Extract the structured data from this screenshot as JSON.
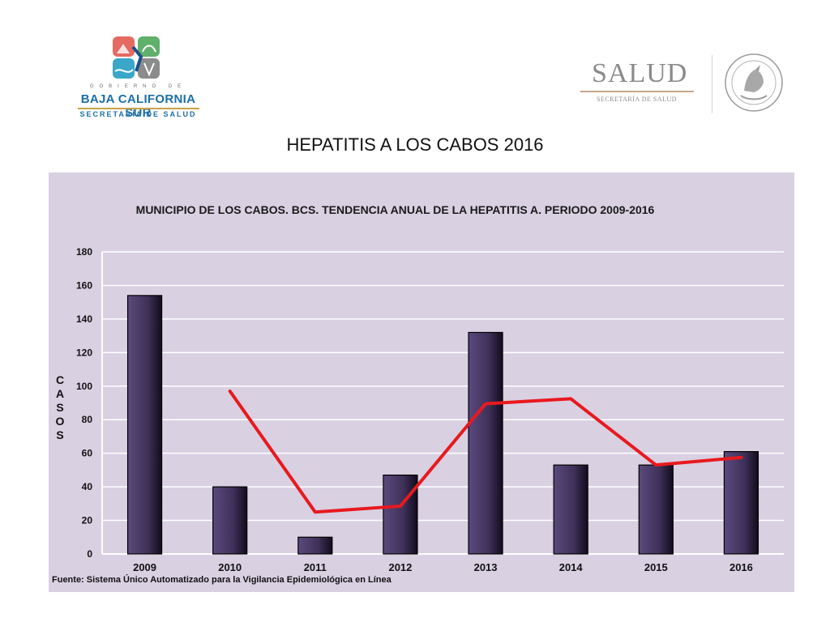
{
  "logos": {
    "bcs": {
      "gobierno": "GOBIERNO DE",
      "name": "BAJA CALIFORNIA SUR",
      "sub": "SECRETARÍA DE SALUD"
    },
    "salud": {
      "word": "SALUD",
      "sub": "SECRETARÍA DE SALUD",
      "seal_icon": "mexican-coat-of-arms-seal"
    }
  },
  "page_title": "HEPATITIS A  LOS CABOS 2016",
  "source_note": "Fuente: Sistema Único Automatizado para la Vigilancia Epidemiológica en Línea",
  "colors": {
    "frame_bg": "#d9d0e2",
    "bar": "#4a3a66",
    "trend": "#e8191e",
    "grid": "#ffffff"
  },
  "chart_data": {
    "type": "bar",
    "title": "MUNICIPIO DE LOS CABOS. BCS. TENDENCIA ANUAL DE LA HEPATITIS A. PERIODO 2009-2016",
    "xlabel": "",
    "ylabel": "CASOS",
    "ylim": [
      0,
      180
    ],
    "yticks": [
      0,
      20,
      40,
      60,
      80,
      100,
      120,
      140,
      160,
      180
    ],
    "categories": [
      "2009",
      "2010",
      "2011",
      "2012",
      "2013",
      "2014",
      "2015",
      "2016"
    ],
    "series": [
      {
        "type": "bar",
        "values": [
          154,
          40,
          10,
          47,
          132,
          53,
          53,
          61
        ]
      },
      {
        "type": "line",
        "values": [
          null,
          97,
          25,
          28.5,
          89.5,
          92.5,
          53,
          57.5
        ]
      }
    ],
    "grid": true,
    "legend": "none"
  }
}
